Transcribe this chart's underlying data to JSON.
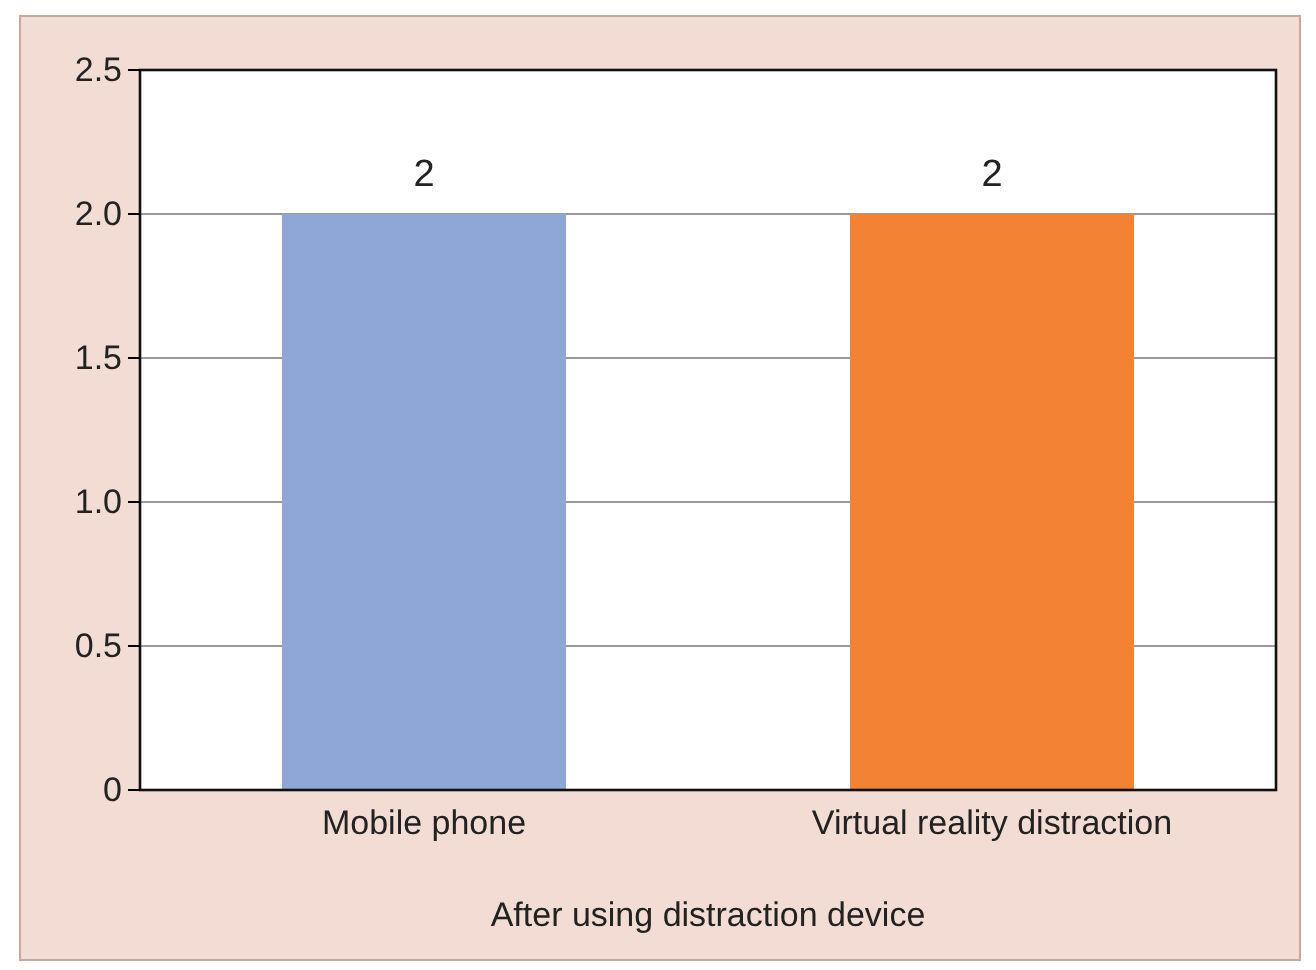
{
  "chart_data": {
    "type": "bar",
    "categories": [
      "Mobile phone",
      "Virtual reality distraction"
    ],
    "values": [
      2,
      2
    ],
    "colors": [
      "#8fa7d6",
      "#f38233"
    ],
    "xlabel": "After using distraction device",
    "ylim": [
      0,
      2.5
    ],
    "yticks": [
      0,
      {
        "value": 0.5,
        "label": "0.5"
      },
      {
        "value": 1,
        "label": "1.0"
      },
      {
        "value": 1.5,
        "label": "1.5"
      },
      {
        "value": 2,
        "label": "2.0"
      },
      {
        "value": 2.5,
        "label": "2.5"
      }
    ],
    "grid": "y",
    "data_labels": true
  }
}
